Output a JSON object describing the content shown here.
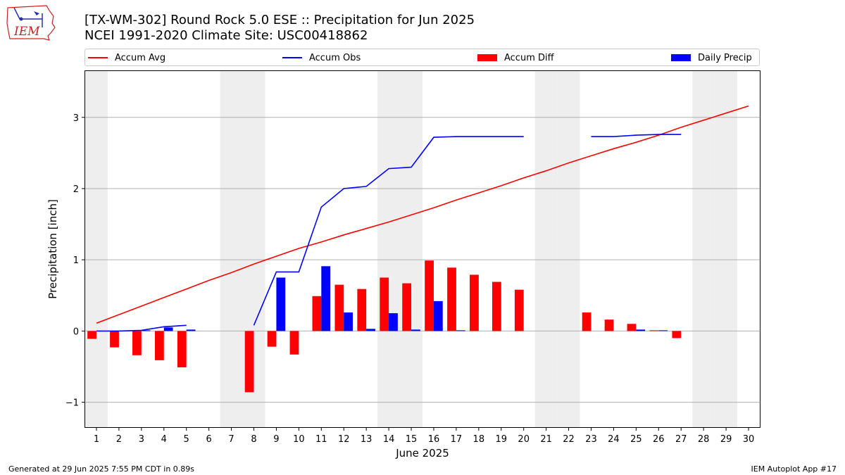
{
  "header": {
    "title_line1": "[TX-WM-302] Round Rock 5.0 ESE :: Precipitation for Jun 2025",
    "title_line2": "NCEI 1991-2020 Climate Site: USC00418862",
    "logo_text": "IEM"
  },
  "footer": {
    "generated": "Generated at 29 Jun 2025 7:55 PM CDT in 0.89s",
    "app": "IEM Autoplot App #17"
  },
  "colors": {
    "accum_avg": "#ff0000",
    "accum_obs": "#0000ff",
    "accum_diff": "#ff0000",
    "daily_precip": "#0000ff",
    "weekend_shade": "#eeeeee",
    "grid": "#b0b0b0"
  },
  "chart_data": {
    "type": "bar",
    "title": "[TX-WM-302] Round Rock 5.0 ESE :: Precipitation for Jun 2025",
    "subtitle": "NCEI 1991-2020 Climate Site: USC00418862",
    "xlabel": "June 2025",
    "ylabel": "Precipitation [inch]",
    "xlim": [
      0.5,
      30.5
    ],
    "ylim": [
      -1.35,
      3.65
    ],
    "yticks": [
      -1,
      0,
      1,
      2,
      3
    ],
    "ytick_labels": [
      "−1",
      "0",
      "1",
      "2",
      "3"
    ],
    "days": [
      1,
      2,
      3,
      4,
      5,
      6,
      7,
      8,
      9,
      10,
      11,
      12,
      13,
      14,
      15,
      16,
      17,
      18,
      19,
      20,
      21,
      22,
      23,
      24,
      25,
      26,
      27,
      28,
      29,
      30
    ],
    "shaded_days": [
      1,
      7,
      8,
      14,
      15,
      21,
      22,
      28,
      29
    ],
    "grid": "horizontal",
    "legend": {
      "placement": "top",
      "entries": [
        "Accum Avg",
        "Accum Obs",
        "Accum Diff",
        "Daily Precip"
      ]
    },
    "series": [
      {
        "name": "Accum Avg",
        "kind": "line",
        "values": [
          0.11,
          0.23,
          0.35,
          0.47,
          0.59,
          0.71,
          0.82,
          0.94,
          1.05,
          1.16,
          1.25,
          1.35,
          1.44,
          1.53,
          1.63,
          1.73,
          1.84,
          1.94,
          2.04,
          2.15,
          2.25,
          2.36,
          2.46,
          2.56,
          2.65,
          2.75,
          2.86,
          2.96,
          3.06,
          3.16
        ]
      },
      {
        "name": "Accum Obs",
        "kind": "line",
        "values": [
          0.0,
          0.0,
          0.01,
          0.06,
          0.08,
          null,
          null,
          0.08,
          0.83,
          0.83,
          1.74,
          2.0,
          2.03,
          2.28,
          2.3,
          2.72,
          2.73,
          2.73,
          2.73,
          2.73,
          null,
          null,
          2.73,
          2.73,
          2.75,
          2.76,
          2.76,
          null,
          null,
          null
        ]
      },
      {
        "name": "Accum Diff",
        "kind": "bar",
        "values": [
          -0.11,
          -0.23,
          -0.34,
          -0.41,
          -0.51,
          null,
          null,
          -0.86,
          -0.22,
          -0.33,
          0.49,
          0.65,
          0.59,
          0.75,
          0.67,
          0.99,
          0.89,
          0.79,
          0.69,
          0.58,
          null,
          null,
          0.26,
          0.16,
          0.1,
          0.01,
          -0.1,
          null,
          null,
          null
        ]
      },
      {
        "name": "Daily Precip",
        "kind": "bar",
        "values": [
          0.0,
          0.0,
          0.01,
          0.05,
          0.02,
          null,
          null,
          0.0,
          0.75,
          0.0,
          0.91,
          0.26,
          0.03,
          0.25,
          0.02,
          0.42,
          0.01,
          0.0,
          0.0,
          0.0,
          null,
          null,
          0.0,
          0.0,
          0.02,
          0.01,
          0.0,
          null,
          null,
          null
        ]
      }
    ]
  }
}
